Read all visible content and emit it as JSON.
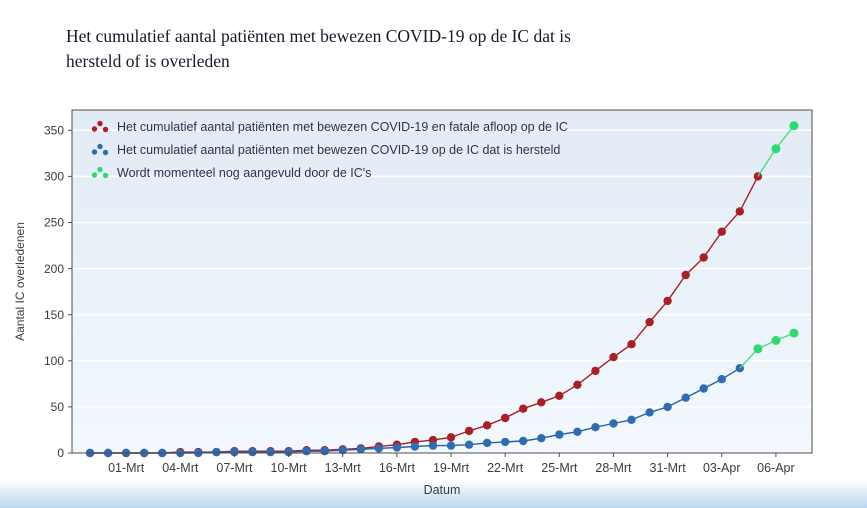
{
  "page": {
    "title": {
      "line1": "Het cumulatief aantal patiënten met bewezen COVID-19 op de IC dat is",
      "line2": "hersteld of is overleden"
    }
  },
  "chart_data": {
    "type": "line",
    "title": "Het cumulatief aantal patiënten met bewezen COVID-19 op de IC dat is hersteld of is overleden",
    "xlabel": "Datum",
    "ylabel": "Aantal IC overledenen",
    "ylim": [
      0,
      350
    ],
    "yticks": [
      0,
      50,
      100,
      150,
      200,
      250,
      300,
      350
    ],
    "x_note": "x = dag-index; dag 2 = 01-Mrt 2020, dag 38 = 06-Apr 2020",
    "xticks": [
      {
        "day": 2,
        "label": "01-Mrt"
      },
      {
        "day": 5,
        "label": "04-Mrt"
      },
      {
        "day": 8,
        "label": "07-Mrt"
      },
      {
        "day": 11,
        "label": "10-Mrt"
      },
      {
        "day": 14,
        "label": "13-Mrt"
      },
      {
        "day": 17,
        "label": "16-Mrt"
      },
      {
        "day": 20,
        "label": "19-Mrt"
      },
      {
        "day": 23,
        "label": "22-Mrt"
      },
      {
        "day": 26,
        "label": "25-Mrt"
      },
      {
        "day": 29,
        "label": "28-Mrt"
      },
      {
        "day": 32,
        "label": "31-Mrt"
      },
      {
        "day": 35,
        "label": "03-Apr"
      },
      {
        "day": 38,
        "label": "06-Apr"
      }
    ],
    "grid": "horizontal-white",
    "legend_position": "top-left-inside",
    "series": [
      {
        "name": "Het cumulatief aantal patiënten met bewezen COVID-19 en fatale afloop op de IC",
        "color": "#a81f24",
        "line_color": "#a81f24",
        "marker_r": 4.2,
        "x_start": 0,
        "values": [
          0,
          0,
          0,
          0,
          0,
          1,
          1,
          1,
          2,
          2,
          2,
          2,
          3,
          3,
          4,
          5,
          7,
          9,
          12,
          14,
          17,
          24,
          30,
          38,
          48,
          55,
          62,
          74,
          89,
          104,
          118,
          142,
          165,
          193,
          212,
          240,
          262,
          300
        ]
      },
      {
        "name": "Het cumulatief aantal patiënten met bewezen COVID-19 op de IC dat is hersteld",
        "color": "#2e6db4",
        "line_color": "#2a5f9e",
        "marker_r": 4.2,
        "x_start": 0,
        "values": [
          0,
          0,
          0,
          0,
          0,
          0,
          0,
          1,
          1,
          1,
          1,
          1,
          2,
          2,
          3,
          4,
          5,
          6,
          7,
          8,
          8,
          9,
          11,
          12,
          13,
          16,
          20,
          23,
          28,
          32,
          36,
          44,
          50,
          60,
          70,
          80,
          92
        ]
      },
      {
        "name": "Wordt momenteel nog aangevuld door de IC's",
        "color": "#2fd96d",
        "line_color": "#4cdc82",
        "marker_r": 4.5,
        "segments": [
          {
            "x": [
              37,
              38,
              39
            ],
            "values": [
              300,
              330,
              355
            ],
            "skip_first_marker": true
          },
          {
            "x": [
              36,
              37,
              38,
              39
            ],
            "values": [
              92,
              113,
              122,
              130
            ],
            "skip_first_marker": true
          }
        ]
      }
    ]
  }
}
